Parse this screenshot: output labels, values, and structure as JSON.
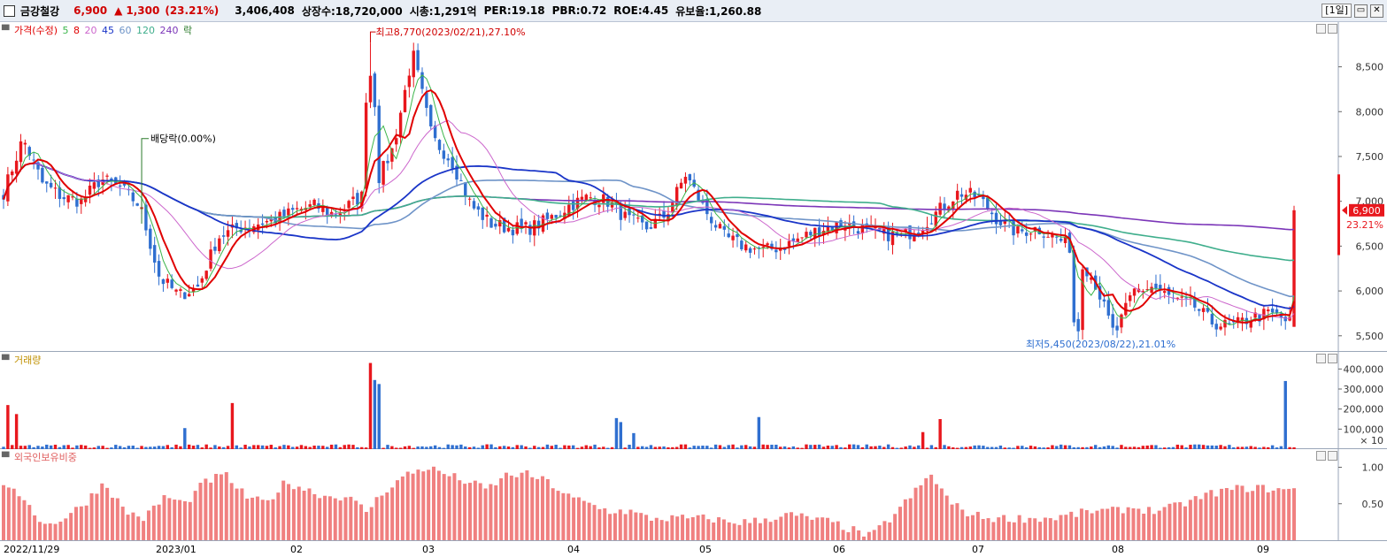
{
  "header": {
    "stock_name": "금강철강",
    "price": "6,900",
    "arrow": "▲",
    "change": "1,300",
    "change_pct": "(23.21%)",
    "volume": "3,406,408",
    "listed_shares": "상장수:18,720,000",
    "market_cap": "시총:1,291억",
    "per": "PER:19.18",
    "pbr": "PBR:0.72",
    "roe": "ROE:4.45",
    "retention": "유보율:1,260.88",
    "period": "[1일]",
    "btn_restore": "▭",
    "btn_close": "✕"
  },
  "price_pane": {
    "legend": {
      "price": "가격(수정)",
      "ma5": "5",
      "ma8": "8",
      "ma20": "20",
      "ma45": "45",
      "ma60": "60",
      "ma120": "120",
      "ma240": "240",
      "ex": "락"
    },
    "high_note": "최고8,770(2023/02/21),27.10%",
    "low_note": "최저5,450(2023/08/22),21.01%",
    "dividend_note": "배당락(0.00%)",
    "current_price_tag": "6,900",
    "current_pct_tag": "23.21%",
    "y_ticks": [
      "8,500",
      "8,000",
      "7,500",
      "7,000",
      "6,500",
      "6,000",
      "5,500"
    ]
  },
  "volume_pane": {
    "legend": "거래량",
    "y_ticks": [
      "400,000",
      "300,000",
      "200,000",
      "100,000"
    ],
    "multiplier": "× 10"
  },
  "foreign_pane": {
    "legend": "외국인보유비중",
    "y_ticks": [
      "1.00",
      "0.50"
    ]
  },
  "x_axis": {
    "labels": [
      "2022/11/29",
      "2023/01",
      "02",
      "03",
      "04",
      "05",
      "06",
      "07",
      "08",
      "09"
    ]
  },
  "colors": {
    "up": "#e8171d",
    "down": "#2f6fd0",
    "ma5": "#3bb54a",
    "ma8": "#e00000",
    "ma20": "#cc66cc",
    "ma45": "#1a35c8",
    "ma60": "#6f94c8",
    "ma120": "#3fae8c",
    "ma240": "#7b35b8",
    "foreign": "#f08080"
  },
  "chart_data": [
    {
      "type": "candlestick",
      "title": "",
      "x_start": "2022/11/29",
      "x_end": "2023/09",
      "ylim": [
        5350,
        8900
      ],
      "high": {
        "value": 8770,
        "date": "2023/02/21"
      },
      "low": {
        "value": 5450,
        "date": "2023/08/22"
      },
      "last": {
        "open": 5600,
        "high": 6950,
        "low": 5600,
        "close": 6900
      },
      "anchors": [
        7100,
        7700,
        7200,
        7050,
        7000,
        7250,
        7150,
        6950,
        6150,
        5950,
        6050,
        6600,
        6700,
        6750,
        6800,
        6900,
        6950,
        6850,
        7000,
        7150,
        7600,
        8650,
        7700,
        7450,
        6950,
        6750,
        6700,
        6700,
        6800,
        6950,
        7050,
        7000,
        6800,
        6700,
        6850,
        7300,
        6900,
        6600,
        6500,
        6450,
        6500,
        6600,
        6700,
        6750,
        6700,
        6650,
        6600,
        6700,
        6900,
        7100,
        7050,
        6800,
        6650,
        6700,
        6600,
        6450,
        6100,
        5500,
        6000,
        6050,
        5900,
        5850,
        5650,
        5600,
        5700,
        5750,
        5650,
        6900
      ]
    },
    {
      "type": "bar",
      "title": "거래량",
      "ylim": [
        0,
        450000
      ],
      "spikes": [
        {
          "date_index": 1,
          "value": 220000
        },
        {
          "date_index": 3,
          "value": 175000
        },
        {
          "date_index": 42,
          "value": 105000
        },
        {
          "date_index": 53,
          "value": 230000
        },
        {
          "date_index": 85,
          "value": 430000
        },
        {
          "date_index": 86,
          "value": 345000
        },
        {
          "date_index": 87,
          "value": 325000
        },
        {
          "date_index": 142,
          "value": 155000
        },
        {
          "date_index": 143,
          "value": 135000
        },
        {
          "date_index": 146,
          "value": 80000
        },
        {
          "date_index": 175,
          "value": 160000
        },
        {
          "date_index": 213,
          "value": 85000
        },
        {
          "date_index": 217,
          "value": 150000
        },
        {
          "date_index": 297,
          "value": 340000
        }
      ],
      "baseline": 20000
    },
    {
      "type": "bar",
      "title": "외국인보유비중",
      "ylim": [
        0,
        1.2
      ],
      "y_ticks": [
        1.0,
        0.5
      ],
      "anchors": [
        0.7,
        0.6,
        0.2,
        0.3,
        0.5,
        0.8,
        0.4,
        0.3,
        0.6,
        0.5,
        0.8,
        0.9,
        0.6,
        0.5,
        0.8,
        0.7,
        0.6,
        0.6,
        0.4,
        0.7,
        0.9,
        1.0,
        0.9,
        0.8,
        0.7,
        0.9,
        0.9,
        0.8,
        0.6,
        0.5,
        0.4,
        0.4,
        0.3,
        0.3,
        0.3,
        0.3,
        0.25,
        0.25,
        0.3,
        0.35,
        0.3,
        0.25,
        0.15,
        0.05,
        0.3,
        0.6,
        0.9,
        0.5,
        0.35,
        0.3,
        0.3,
        0.3,
        0.3,
        0.35,
        0.4,
        0.4,
        0.45,
        0.4,
        0.45,
        0.55,
        0.65,
        0.7,
        0.72,
        0.7,
        0.68
      ]
    }
  ]
}
